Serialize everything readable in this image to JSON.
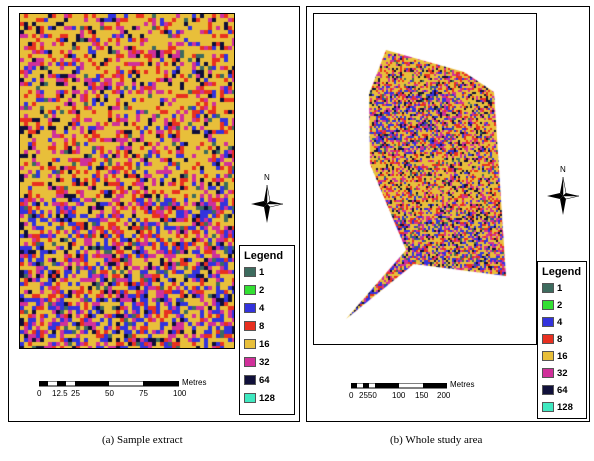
{
  "panel_a": {
    "caption": "(a)  Sample extract",
    "legend": {
      "title": "Legend",
      "items": [
        {
          "label": "1",
          "color": "#3d6b5e"
        },
        {
          "label": "2",
          "color": "#33e033"
        },
        {
          "label": "4",
          "color": "#3333dd"
        },
        {
          "label": "8",
          "color": "#e83020"
        },
        {
          "label": "16",
          "color": "#e8bf3a"
        },
        {
          "label": "32",
          "color": "#d0309a"
        },
        {
          "label": "64",
          "color": "#10103a"
        },
        {
          "label": "128",
          "color": "#3fe8c0"
        }
      ]
    },
    "scale": {
      "ticks": [
        "0",
        "12.5",
        "25",
        "50",
        "75",
        "100"
      ],
      "unit": "Metres"
    },
    "north": "N"
  },
  "panel_b": {
    "caption": "(b)  Whole study area",
    "legend": {
      "title": "Legend",
      "items": [
        {
          "label": "1",
          "color": "#3d6b5e"
        },
        {
          "label": "2",
          "color": "#33e033"
        },
        {
          "label": "4",
          "color": "#3333dd"
        },
        {
          "label": "8",
          "color": "#e83020"
        },
        {
          "label": "16",
          "color": "#e8bf3a"
        },
        {
          "label": "32",
          "color": "#d0309a"
        },
        {
          "label": "64",
          "color": "#10103a"
        },
        {
          "label": "128",
          "color": "#3fe8c0"
        }
      ]
    },
    "scale": {
      "ticks": [
        "0",
        "2550",
        "100",
        "150",
        "200"
      ],
      "unit": "Metres"
    },
    "north": "N"
  }
}
